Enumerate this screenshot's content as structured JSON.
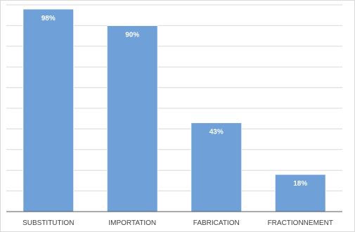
{
  "chart_data": {
    "type": "bar",
    "title": "",
    "xlabel": "",
    "ylabel": "",
    "categories": [
      "SUBSTITUTION",
      "IMPORTATION",
      "FABRICATION",
      "FRACTIONNEMENT"
    ],
    "values": [
      98,
      90,
      43,
      18
    ],
    "value_labels": [
      "98%",
      "90%",
      "43%",
      "18%"
    ],
    "ylim": [
      0,
      100
    ],
    "grid": true,
    "legend": "none",
    "bar_color": "#6fa0d7"
  }
}
